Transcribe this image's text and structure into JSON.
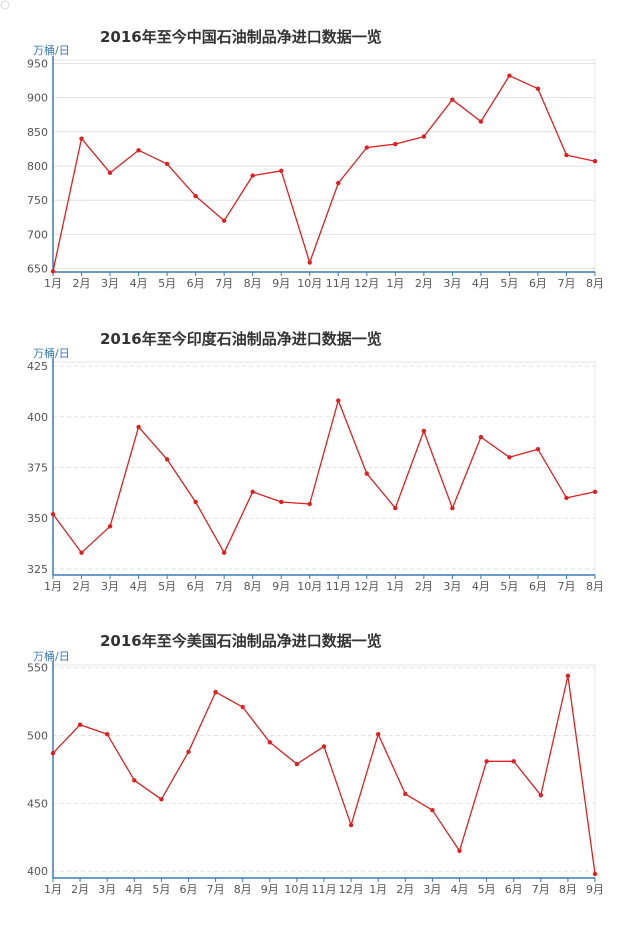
{
  "chart_data": [
    {
      "type": "line",
      "title": "2016年至今中国石油制品净进口数据一览",
      "ylabel": "万桶/日",
      "ylim": [
        645,
        955
      ],
      "yticks": [
        650,
        700,
        750,
        800,
        850,
        900,
        950
      ],
      "grid": "solid",
      "categories": [
        "1月",
        "2月",
        "3月",
        "4月",
        "5月",
        "6月",
        "7月",
        "8月",
        "9月",
        "10月",
        "11月",
        "12月",
        "1月",
        "2月",
        "3月",
        "4月",
        "5月",
        "6月",
        "7月",
        "8月"
      ],
      "series": [
        {
          "color": "#e02020",
          "values": [
            646,
            840,
            790,
            823,
            803,
            756,
            720,
            786,
            793,
            659,
            775,
            827,
            832,
            843,
            897,
            865,
            932,
            913,
            816,
            807
          ]
        }
      ]
    },
    {
      "type": "line",
      "title": "2016年至今印度石油制品净进口数据一览",
      "ylabel": "万桶/日",
      "ylim": [
        322,
        427
      ],
      "yticks": [
        325,
        350,
        375,
        400,
        425
      ],
      "grid": "dashed",
      "categories": [
        "1月",
        "2月",
        "3月",
        "4月",
        "5月",
        "6月",
        "7月",
        "8月",
        "9月",
        "10月",
        "11月",
        "12月",
        "1月",
        "2月",
        "3月",
        "4月",
        "5月",
        "6月",
        "7月",
        "8月"
      ],
      "series": [
        {
          "color": "#e02020",
          "values": [
            352,
            333,
            346,
            395,
            379,
            358,
            333,
            363,
            358,
            357,
            408,
            372,
            355,
            393,
            355,
            390,
            380,
            384,
            360,
            363
          ]
        }
      ]
    },
    {
      "type": "line",
      "title": "2016年至今美国石油制品净进口数据一览",
      "ylabel": "万桶/日",
      "ylim": [
        395,
        552
      ],
      "yticks": [
        400,
        450,
        500,
        550
      ],
      "grid": "dashed",
      "categories": [
        "1月",
        "2月",
        "3月",
        "4月",
        "5月",
        "6月",
        "7月",
        "8月",
        "9月",
        "10月",
        "11月",
        "12月",
        "1月",
        "2月",
        "3月",
        "4月",
        "5月",
        "6月",
        "7月",
        "8月",
        "9月"
      ],
      "series": [
        {
          "color": "#e02020",
          "values": [
            487,
            508,
            501,
            467,
            453,
            488,
            532,
            521,
            495,
            479,
            492,
            434,
            501,
            457,
            445,
            415,
            481,
            481,
            456,
            544,
            398
          ]
        }
      ]
    }
  ]
}
